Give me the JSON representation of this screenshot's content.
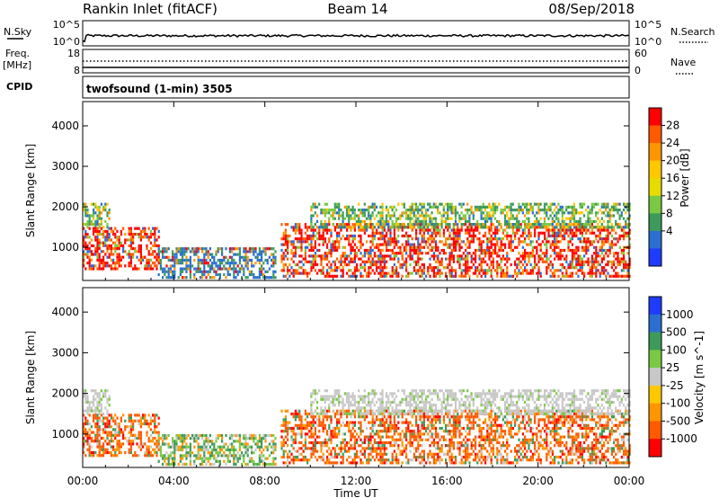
{
  "header": {
    "station": "Rankin Inlet (fitACF)",
    "beam": "Beam 14",
    "date": "08/Sep/2018"
  },
  "strips": {
    "nsky_label": "N.Sky",
    "nsearch_label": "N.Search",
    "nsky_ticks": [
      "10^5",
      "10^0"
    ],
    "nsky_right_ticks": [
      "10^5",
      "10^0"
    ],
    "freq_label": "Freq.",
    "freq_unit": "[MHz]",
    "freq_ticks": [
      "18",
      "8"
    ],
    "nave_label": "Nave",
    "nave_ticks": [
      "60",
      "0"
    ],
    "cpid_label": "CPID",
    "cpid_text": "twofsound (1-min) 3505"
  },
  "chart_data": [
    {
      "type": "heatmap",
      "panel": "power",
      "ylabel": "Slant Range [km]",
      "xlabel": "",
      "x_ticks": [
        "00:00",
        "04:00",
        "08:00",
        "12:00",
        "16:00",
        "20:00",
        "00:00"
      ],
      "x_range_hours": [
        0,
        24
      ],
      "y_ticks": [
        1000,
        2000,
        3000,
        4000
      ],
      "ylim": [
        180,
        4600
      ],
      "colorbar": {
        "label": "Power [dB]",
        "ticks": [
          "28",
          "24",
          "20",
          "16",
          "12",
          "8",
          "4"
        ],
        "colors": [
          "#ff0000",
          "#ff5a00",
          "#ff9600",
          "#ffc800",
          "#e6dc00",
          "#7ac943",
          "#3c9a5a",
          "#2a6fd0",
          "#1e3cff"
        ]
      },
      "echo_regions": [
        {
          "t": [
            0.0,
            1.2
          ],
          "r": [
            1500,
            2100
          ],
          "level": "mid"
        },
        {
          "t": [
            0.0,
            3.3
          ],
          "r": [
            500,
            1500
          ],
          "level": "high"
        },
        {
          "t": [
            3.3,
            8.5
          ],
          "r": [
            250,
            1000
          ],
          "level": "low"
        },
        {
          "t": [
            8.7,
            24.0
          ],
          "r": [
            300,
            1600
          ],
          "level": "high"
        },
        {
          "t": [
            10.0,
            24.0
          ],
          "r": [
            1500,
            2100
          ],
          "level": "mid"
        }
      ]
    },
    {
      "type": "heatmap",
      "panel": "velocity",
      "ylabel": "Slant Range [km]",
      "xlabel": "Time UT",
      "x_ticks": [
        "00:00",
        "04:00",
        "08:00",
        "12:00",
        "16:00",
        "20:00",
        "00:00"
      ],
      "x_range_hours": [
        0,
        24
      ],
      "y_ticks": [
        1000,
        2000,
        3000,
        4000
      ],
      "ylim": [
        180,
        4600
      ],
      "colorbar": {
        "label": "Velocity [m s^-1]",
        "ticks": [
          "1000",
          "500",
          "100",
          "25",
          "-25",
          "-100",
          "-500",
          "-1000"
        ],
        "colors": [
          "#1e3cff",
          "#2a6fd0",
          "#3c9a5a",
          "#7ac943",
          "#c8c8c8",
          "#ffc800",
          "#ff9600",
          "#ff5a00",
          "#ff0000"
        ]
      },
      "echo_regions": [
        {
          "t": [
            0.0,
            1.2
          ],
          "r": [
            1500,
            2100
          ],
          "level": "ground"
        },
        {
          "t": [
            0.0,
            3.3
          ],
          "r": [
            500,
            1500
          ],
          "level": "away"
        },
        {
          "t": [
            3.3,
            8.5
          ],
          "r": [
            250,
            1000
          ],
          "level": "mixed"
        },
        {
          "t": [
            8.7,
            24.0
          ],
          "r": [
            300,
            1600
          ],
          "level": "away"
        },
        {
          "t": [
            10.0,
            24.0
          ],
          "r": [
            1500,
            2100
          ],
          "level": "ground"
        }
      ]
    }
  ]
}
